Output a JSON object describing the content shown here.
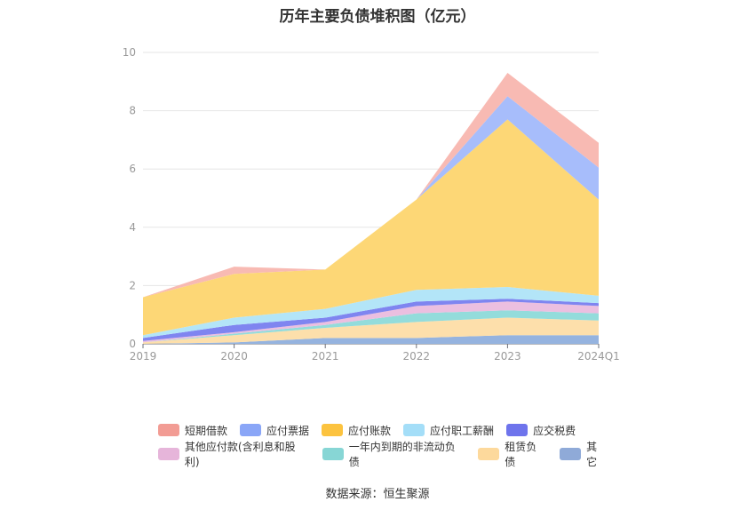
{
  "title": "历年主要负债堆积图（亿元）",
  "source": "数据来源：恒生聚源",
  "chart_data": {
    "type": "area",
    "stacked": true,
    "x": [
      "2019",
      "2020",
      "2021",
      "2022",
      "2023",
      "2024Q1"
    ],
    "ylim": [
      0,
      10
    ],
    "yticks": [
      0,
      2,
      4,
      6,
      8,
      10
    ],
    "grid": true,
    "legend_position": "bottom",
    "series": [
      {
        "name": "其它",
        "color": "#95b3df",
        "values": [
          0.0,
          0.05,
          0.2,
          0.2,
          0.3,
          0.3
        ]
      },
      {
        "name": "租赁负债",
        "color": "#fddfab",
        "values": [
          0.05,
          0.25,
          0.35,
          0.55,
          0.6,
          0.5
        ]
      },
      {
        "name": "一年内到期的非流动负债",
        "color": "#93dcdb",
        "values": [
          0.0,
          0.05,
          0.1,
          0.3,
          0.25,
          0.25
        ]
      },
      {
        "name": "其他应付款(含利息和股利)",
        "color": "#ebbfe0",
        "values": [
          0.05,
          0.05,
          0.1,
          0.25,
          0.3,
          0.25
        ]
      },
      {
        "name": "应交税费",
        "color": "#7f85f0",
        "values": [
          0.1,
          0.25,
          0.15,
          0.15,
          0.1,
          0.1
        ]
      },
      {
        "name": "应付职工薪酬",
        "color": "#b3e5f8",
        "values": [
          0.1,
          0.25,
          0.3,
          0.4,
          0.4,
          0.25
        ]
      },
      {
        "name": "应付账款",
        "color": "#fdd776",
        "values": [
          1.3,
          1.5,
          1.35,
          3.1,
          5.75,
          3.3
        ]
      },
      {
        "name": "应付票据",
        "color": "#a7bdfb",
        "values": [
          0.0,
          0.0,
          0.0,
          0.0,
          0.8,
          1.1
        ]
      },
      {
        "name": "短期借款",
        "color": "#f8bab3",
        "values": [
          0.0,
          0.25,
          0.0,
          0.0,
          0.8,
          0.85
        ]
      }
    ],
    "legend_order": [
      "短期借款",
      "应付票据",
      "应付账款",
      "应付职工薪酬",
      "应交税费",
      "其他应付款(含利息和股利)",
      "一年内到期的非流动负债",
      "租赁负债",
      "其它"
    ],
    "legend_colors": {
      "短期借款": "#f29c94",
      "应付票据": "#8aa6f7",
      "应付账款": "#fcc33f",
      "应付职工薪酬": "#a4def8",
      "应交税费": "#6e74ec",
      "其他应付款(含利息和股利)": "#e6b5da",
      "一年内到期的非流动负债": "#87d6d5",
      "租赁负债": "#fdd99c",
      "其它": "#8faad8"
    }
  }
}
